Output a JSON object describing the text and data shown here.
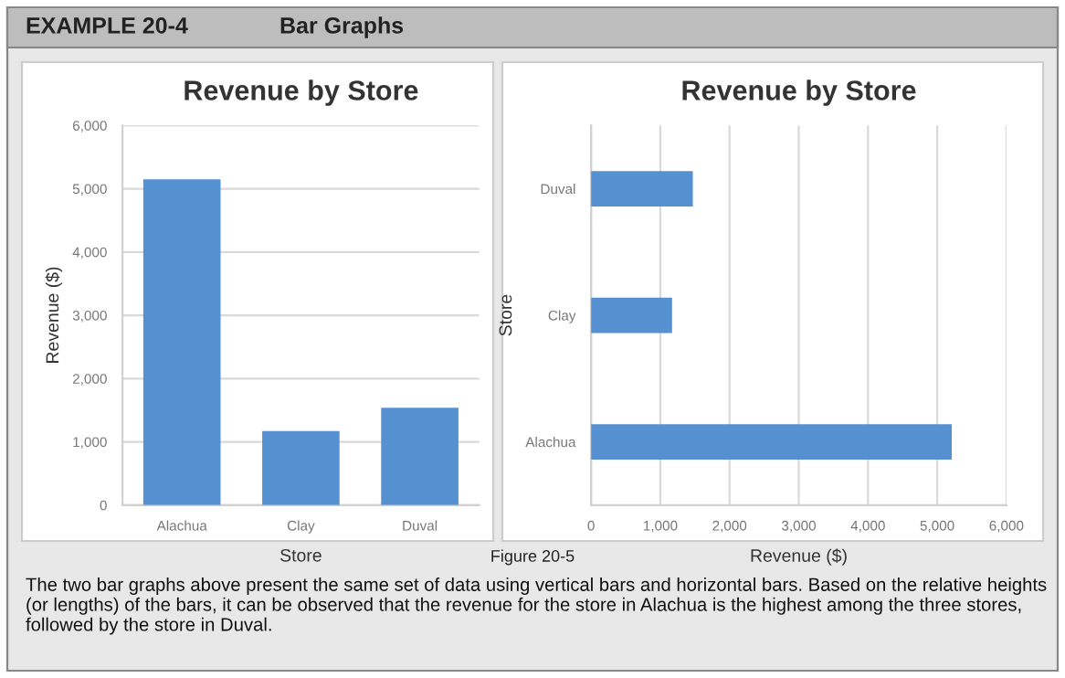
{
  "chart_data": [
    {
      "type": "bar",
      "title": "Revenue by Store",
      "xlabel": "Store",
      "ylabel": "Revenue ($)",
      "categories": [
        "Alachua",
        "Clay",
        "Duval"
      ],
      "values": [
        5150,
        1170,
        1540
      ],
      "color": "#5590d0",
      "ylim": [
        0,
        6000
      ],
      "yticks": [
        {
          "value": 0,
          "label": "0"
        },
        {
          "value": 1000,
          "label": "1,000"
        },
        {
          "value": 2000,
          "label": "2,000"
        },
        {
          "value": 3000,
          "label": "3,000"
        },
        {
          "value": 4000,
          "label": "4,000"
        },
        {
          "value": 5000,
          "label": "5,000"
        },
        {
          "value": 6000,
          "label": "6,000"
        }
      ],
      "grid": "y",
      "annotations": [
        "EXAMPLE 20-4",
        "Bar Graphs"
      ]
    },
    {
      "type": "bar",
      "orientation": "horizontal",
      "title": "Revenue by Store",
      "xlabel": "Revenue ($)",
      "ylabel": "Store",
      "categories": [
        "Duval",
        "Clay",
        "Alachua"
      ],
      "values": [
        1470,
        1170,
        5210
      ],
      "color": "#5590d0",
      "xlim": [
        0,
        6000
      ],
      "xticks": [
        {
          "value": 0,
          "label": "0"
        },
        {
          "value": 1000,
          "label": "1,000"
        },
        {
          "value": 2000,
          "label": "2,000"
        },
        {
          "value": 3000,
          "label": "3,000"
        },
        {
          "value": 4000,
          "label": "4,000"
        },
        {
          "value": 5000,
          "label": "5,000"
        },
        {
          "value": 6000,
          "label": "6,000"
        }
      ],
      "grid": "x",
      "annotations": [
        "Figure 20-5",
        "The two bar graphs above present the same set of data using vertical bars and horizontal bars. Based on the relative heights (or lengths) of the bars, it can be observed that the revenue for the store in Alachua is the highest among the three stores, followed by the store in Duval."
      ]
    }
  ]
}
